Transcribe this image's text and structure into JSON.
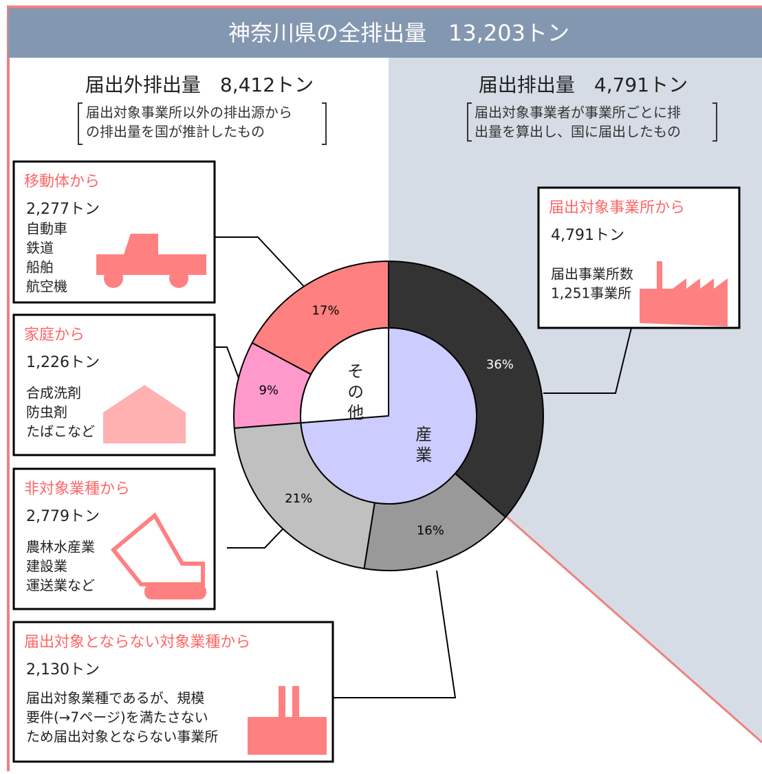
{
  "header": {
    "title": "神奈川県の全排出量　13,203トン"
  },
  "left": {
    "title": "届出外排出量　8,412トン",
    "note": [
      "届出対象事業所以外の排出源から",
      "の排出量を国が推計したもの"
    ]
  },
  "right": {
    "title": "届出排出量　4,791トン",
    "note": [
      "届出対象事業者が事業所ごとに排",
      "出量を算出し、国に届出したもの"
    ],
    "box": {
      "title": "届出対象事業所から",
      "amount": "4,791トン",
      "lines": [
        "届出事業所数",
        "1,251事業所"
      ]
    }
  },
  "boxes": [
    {
      "title": "移動体から",
      "amount": "2,277トン",
      "lines": [
        "自動車",
        "鉄道",
        "船舶",
        "航空機"
      ]
    },
    {
      "title": "家庭から",
      "amount": "1,226トン",
      "lines": [
        "合成洗剤",
        "防虫剤",
        "たばこなど"
      ]
    },
    {
      "title": "非対象業種から",
      "amount": "2,779トン",
      "lines": [
        "農林水産業",
        "建設業",
        "運送業など"
      ]
    },
    {
      "title": "届出対象とならない対象業種から",
      "amount": "2,130トン",
      "lines": [
        "届出対象業種であるが、規模",
        "要件(→7ページ)を満たさない",
        "ため届出対象とならない事業所"
      ]
    }
  ],
  "chart_data": {
    "type": "donut",
    "values": [
      36,
      16,
      21,
      9,
      17
    ],
    "value_labels": [
      "36%",
      "16%",
      "21%",
      "9%",
      "17%"
    ],
    "colors": [
      "#333333",
      "#999999",
      "#c0c0c0",
      "#ff99cc",
      "#ff8080"
    ],
    "inner": {
      "categories": [
        "産業",
        "その他"
      ],
      "values": [
        73,
        26
      ],
      "colors": [
        "#ccccff",
        "#ffffff"
      ]
    }
  }
}
